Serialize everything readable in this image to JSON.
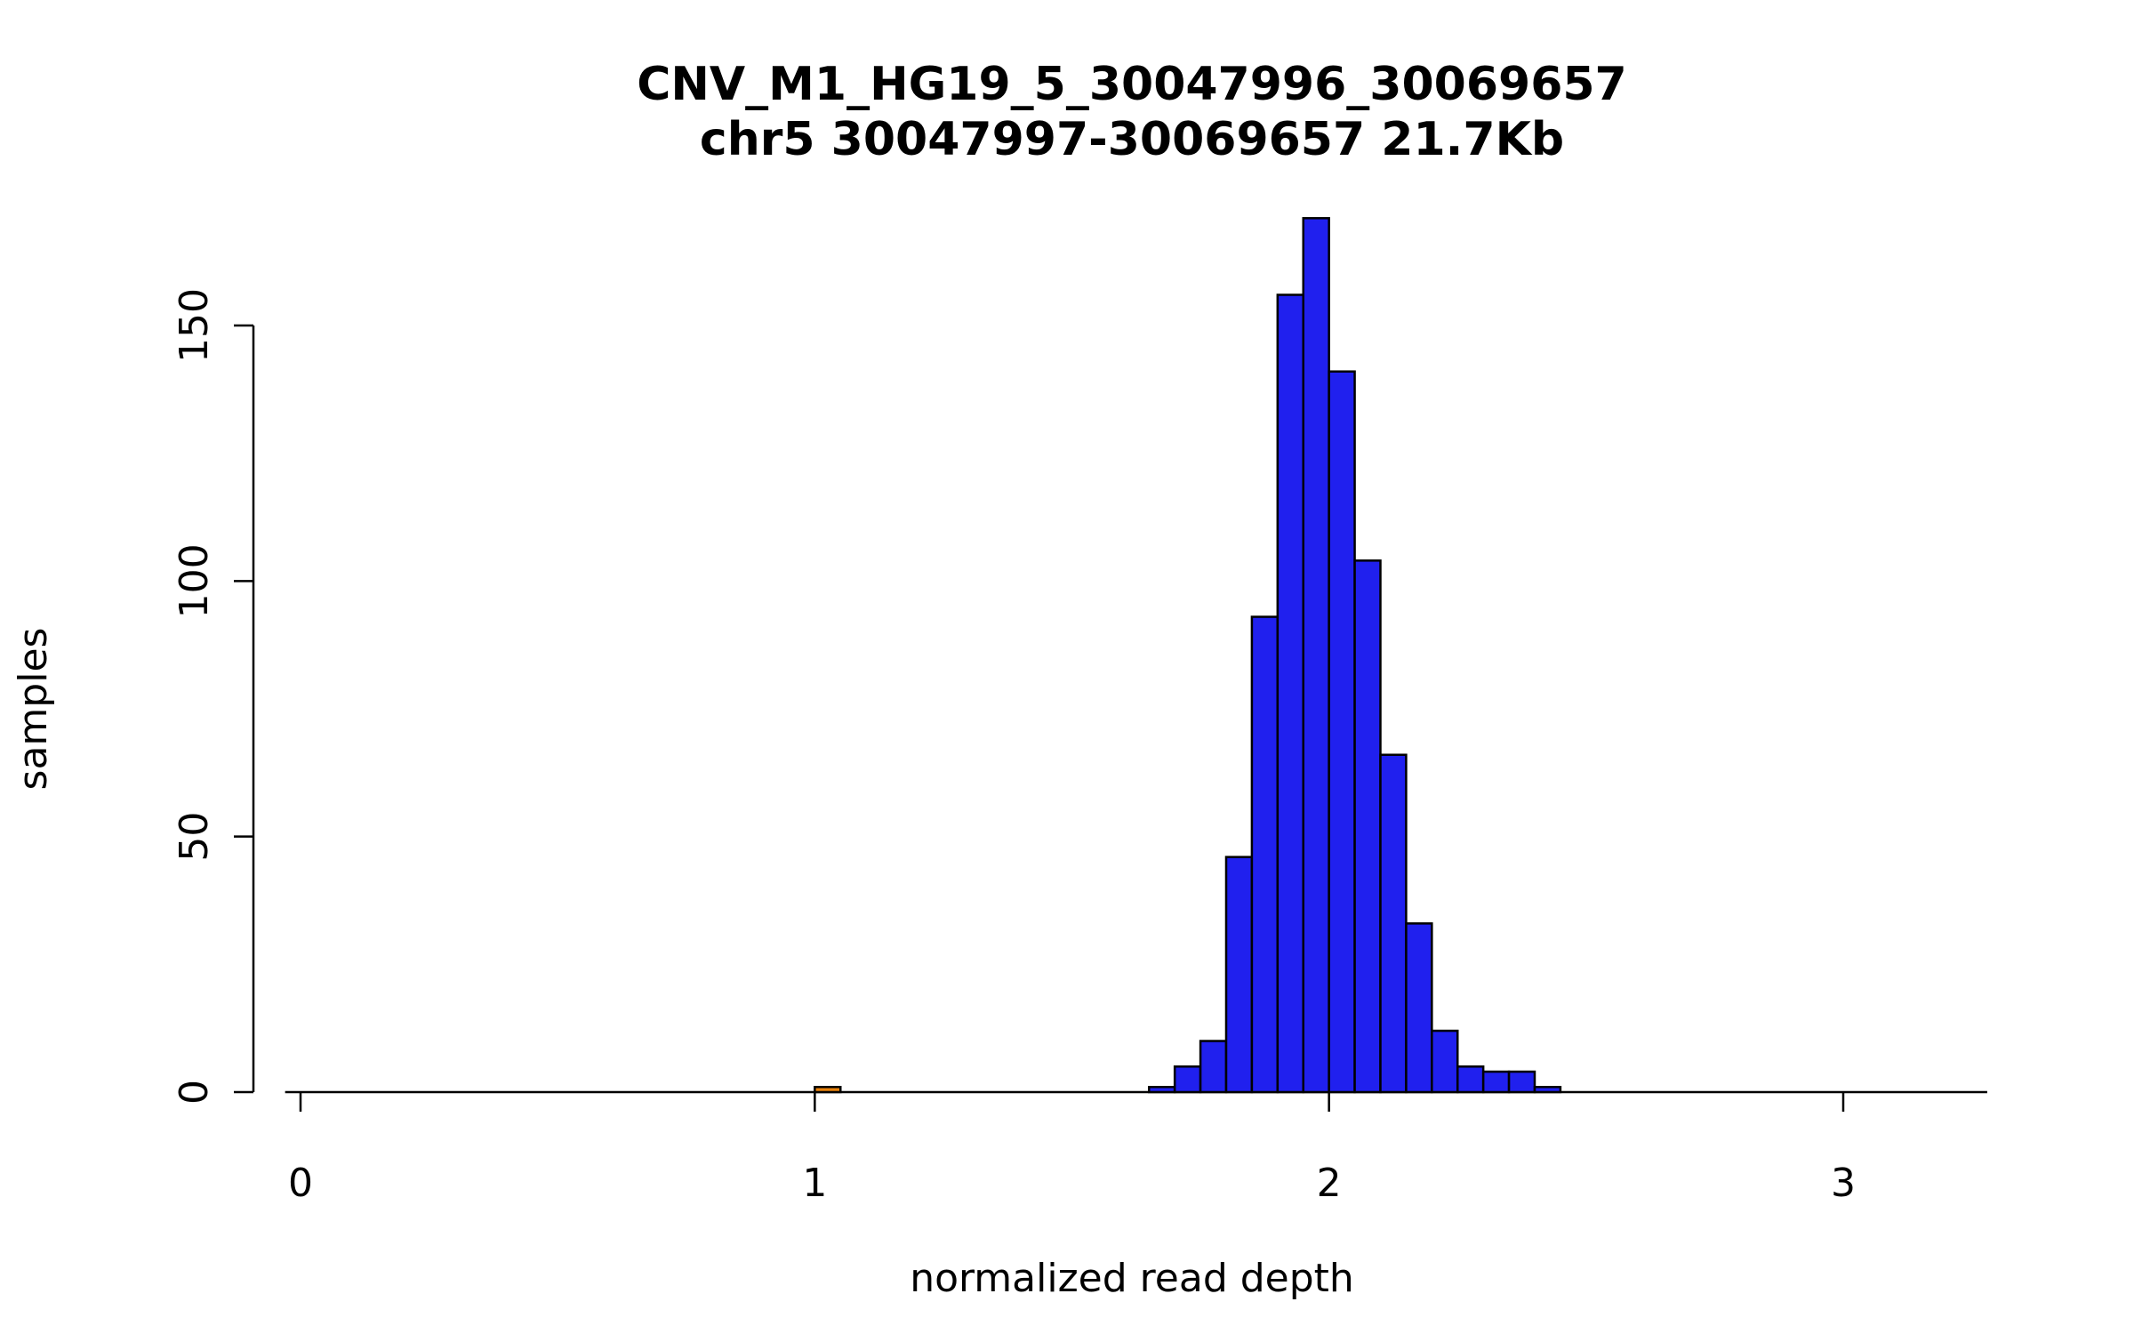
{
  "title_line1": "CNV_M1_HG19_5_30047996_30069657",
  "title_line2": "chr5 30047997-30069657 21.7Kb",
  "chart_data": {
    "type": "bar",
    "subtype": "histogram",
    "title": "CNV_M1_HG19_5_30047996_30069657",
    "subtitle": "chr5 30047997-30069657 21.7Kb",
    "xlabel": "normalized read depth",
    "ylabel": "samples",
    "x_ticks": [
      0,
      1,
      2,
      3
    ],
    "y_ticks": [
      0,
      50,
      100,
      150
    ],
    "xlim": [
      -0.03,
      3.28
    ],
    "ylim": [
      0,
      172
    ],
    "bin_width": 0.05,
    "grid": false,
    "legend": "none",
    "bar_fill": "#2020ee",
    "bar_stroke": "#000000",
    "highlight_fill": "#e8820c",
    "bars": [
      {
        "x0": 1.0,
        "count": 1,
        "highlight": true
      },
      {
        "x0": 1.65,
        "count": 1
      },
      {
        "x0": 1.7,
        "count": 5
      },
      {
        "x0": 1.75,
        "count": 10
      },
      {
        "x0": 1.8,
        "count": 46
      },
      {
        "x0": 1.85,
        "count": 93
      },
      {
        "x0": 1.9,
        "count": 156
      },
      {
        "x0": 1.95,
        "count": 171
      },
      {
        "x0": 2.0,
        "count": 141
      },
      {
        "x0": 2.05,
        "count": 104
      },
      {
        "x0": 2.1,
        "count": 66
      },
      {
        "x0": 2.15,
        "count": 33
      },
      {
        "x0": 2.2,
        "count": 12
      },
      {
        "x0": 2.25,
        "count": 5
      },
      {
        "x0": 2.3,
        "count": 4
      },
      {
        "x0": 2.35,
        "count": 4
      },
      {
        "x0": 2.4,
        "count": 1
      }
    ]
  }
}
